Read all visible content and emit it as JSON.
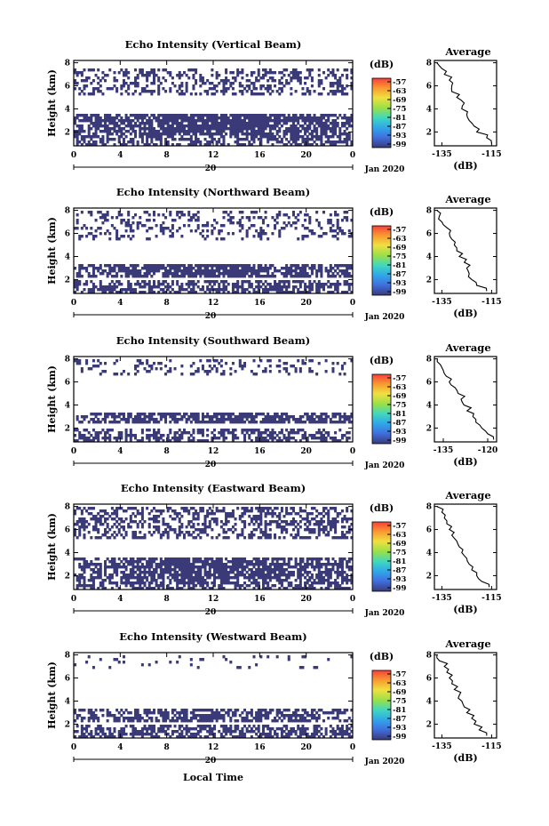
{
  "figure": {
    "xlabel": "Local Time",
    "colorbar_label": "(dB)",
    "colorbar_ticks": [
      "-57",
      "-63",
      "-69",
      "-75",
      "-81",
      "-87",
      "-93",
      "-99"
    ],
    "day_label": "20",
    "month_label": "Jan 2020",
    "avg_title": "Average",
    "avg_xlabel": "(dB)"
  },
  "chart_data": [
    {
      "type": "heatmap",
      "title": "Echo Intensity (Vertical Beam)",
      "ylabel": "Height (km)",
      "xlabel": "Local Time",
      "x_ticks": [
        "0",
        "4",
        "8",
        "12",
        "16",
        "20",
        "0"
      ],
      "y_ticks": [
        "2",
        "4",
        "6",
        "8"
      ],
      "xlim": [
        0,
        24
      ],
      "ylim": [
        0.8,
        8.2
      ],
      "colorbar": {
        "label": "(dB)",
        "range": [
          -99,
          -57
        ],
        "ticks": [
          -57,
          -63,
          -69,
          -75,
          -81,
          -87,
          -93,
          -99
        ]
      },
      "fill_color": "#3a3a78",
      "echo_layers": [
        {
          "label": "upper",
          "bottom_km": 5.2,
          "top_km": 7.5,
          "density": 0.35
        },
        {
          "label": "main",
          "bottom_km": 1.7,
          "top_km": 3.6,
          "density": 0.9
        },
        {
          "label": "lower",
          "bottom_km": 0.8,
          "top_km": 1.7,
          "density": 0.55
        }
      ],
      "average_profile": {
        "title": "Average",
        "xlabel": "(dB)",
        "x_ticks": [
          "-135",
          "-115"
        ],
        "xlim": [
          -138,
          -113
        ],
        "y_ticks": [
          "2",
          "4",
          "6",
          "8"
        ],
        "ylim": [
          0.8,
          8.2
        ],
        "height_km": [
          1.0,
          1.5,
          2.0,
          2.5,
          3.0,
          3.5,
          4.0,
          4.5,
          5.0,
          5.5,
          6.0,
          6.5,
          7.0,
          7.5,
          8.0
        ],
        "intensity_db": [
          -115,
          -117,
          -121,
          -122,
          -124,
          -125,
          -127,
          -126,
          -129,
          -131,
          -131,
          -132,
          -134,
          -135,
          -137
        ]
      }
    },
    {
      "type": "heatmap",
      "title": "Echo Intensity (Northward Beam)",
      "ylabel": "Height (km)",
      "xlabel": "Local Time",
      "x_ticks": [
        "0",
        "4",
        "8",
        "12",
        "16",
        "20",
        "0"
      ],
      "y_ticks": [
        "2",
        "4",
        "6",
        "8"
      ],
      "xlim": [
        0,
        24
      ],
      "ylim": [
        0.8,
        8.2
      ],
      "colorbar": {
        "label": "(dB)",
        "range": [
          -99,
          -57
        ],
        "ticks": [
          -57,
          -63,
          -69,
          -75,
          -81,
          -87,
          -93,
          -99
        ]
      },
      "fill_color": "#3a3a78",
      "echo_layers": [
        {
          "label": "upper",
          "bottom_km": 5.5,
          "top_km": 8.0,
          "density": 0.25
        },
        {
          "label": "main",
          "bottom_km": 2.2,
          "top_km": 3.3,
          "density": 0.85
        },
        {
          "label": "lower",
          "bottom_km": 0.8,
          "top_km": 2.0,
          "density": 0.6
        }
      ],
      "average_profile": {
        "title": "Average",
        "xlabel": "(dB)",
        "x_ticks": [
          "-135",
          "-115"
        ],
        "xlim": [
          -138,
          -113
        ],
        "y_ticks": [
          "2",
          "4",
          "6",
          "8"
        ],
        "ylim": [
          0.8,
          8.2
        ],
        "height_km": [
          1.0,
          1.5,
          2.0,
          2.5,
          3.0,
          3.5,
          4.0,
          4.5,
          5.0,
          5.5,
          6.0,
          6.5,
          7.0,
          7.5,
          8.0
        ],
        "intensity_db": [
          -117,
          -121,
          -123,
          -124,
          -125,
          -126,
          -128,
          -129,
          -130,
          -131,
          -132,
          -133,
          -135,
          -136,
          -137
        ]
      }
    },
    {
      "type": "heatmap",
      "title": "Echo Intensity (Southward Beam)",
      "ylabel": "Height (km)",
      "xlabel": "Local Time",
      "x_ticks": [
        "0",
        "4",
        "8",
        "12",
        "16",
        "20",
        "0"
      ],
      "y_ticks": [
        "2",
        "4",
        "6",
        "8"
      ],
      "xlim": [
        0,
        24
      ],
      "ylim": [
        0.8,
        8.2
      ],
      "colorbar": {
        "label": "(dB)",
        "range": [
          -99,
          -57
        ],
        "ticks": [
          -57,
          -63,
          -69,
          -75,
          -81,
          -87,
          -93,
          -99
        ]
      },
      "fill_color": "#3a3a78",
      "echo_layers": [
        {
          "label": "upper",
          "bottom_km": 6.5,
          "top_km": 8.0,
          "density": 0.2
        },
        {
          "label": "main",
          "bottom_km": 2.4,
          "top_km": 3.4,
          "density": 0.8
        },
        {
          "label": "lower",
          "bottom_km": 0.8,
          "top_km": 2.0,
          "density": 0.55
        }
      ],
      "average_profile": {
        "title": "Average",
        "xlabel": "(dB)",
        "x_ticks": [
          "-135",
          "-120"
        ],
        "xlim": [
          -138,
          -117
        ],
        "y_ticks": [
          "2",
          "4",
          "6",
          "8"
        ],
        "ylim": [
          0.8,
          8.2
        ],
        "height_km": [
          1.0,
          1.5,
          2.0,
          2.5,
          3.0,
          3.5,
          4.0,
          4.5,
          5.0,
          5.5,
          6.0,
          6.5,
          7.0,
          7.5,
          8.0
        ],
        "intensity_db": [
          -118,
          -120,
          -122,
          -124,
          -125,
          -127,
          -128,
          -129,
          -130,
          -131,
          -133,
          -134,
          -135,
          -136,
          -137
        ]
      }
    },
    {
      "type": "heatmap",
      "title": "Echo Intensity (Eastward Beam)",
      "ylabel": "Height (km)",
      "xlabel": "Local Time",
      "x_ticks": [
        "0",
        "4",
        "8",
        "12",
        "16",
        "20",
        "0"
      ],
      "y_ticks": [
        "2",
        "4",
        "6",
        "8"
      ],
      "xlim": [
        0,
        24
      ],
      "ylim": [
        0.8,
        8.2
      ],
      "colorbar": {
        "label": "(dB)",
        "range": [
          -99,
          -57
        ],
        "ticks": [
          -57,
          -63,
          -69,
          -75,
          -81,
          -87,
          -93,
          -99
        ]
      },
      "fill_color": "#3a3a78",
      "echo_layers": [
        {
          "label": "upper",
          "bottom_km": 5.2,
          "top_km": 8.0,
          "density": 0.45
        },
        {
          "label": "main",
          "bottom_km": 1.8,
          "top_km": 3.6,
          "density": 0.85
        },
        {
          "label": "lower",
          "bottom_km": 0.8,
          "top_km": 1.8,
          "density": 0.6
        }
      ],
      "average_profile": {
        "title": "Average",
        "xlabel": "(dB)",
        "x_ticks": [
          "-135",
          "-115"
        ],
        "xlim": [
          -138,
          -113
        ],
        "y_ticks": [
          "2",
          "4",
          "6",
          "8"
        ],
        "ylim": [
          0.8,
          8.2
        ],
        "height_km": [
          1.0,
          1.5,
          2.0,
          2.5,
          3.0,
          3.5,
          4.0,
          4.5,
          5.0,
          5.5,
          6.0,
          6.5,
          7.0,
          7.5,
          8.0
        ],
        "intensity_db": [
          -116,
          -119,
          -121,
          -123,
          -124,
          -125,
          -127,
          -128,
          -129,
          -131,
          -132,
          -133,
          -134,
          -135,
          -137
        ]
      }
    },
    {
      "type": "heatmap",
      "title": "Echo Intensity (Westward Beam)",
      "ylabel": "Height (km)",
      "xlabel": "Local Time",
      "x_ticks": [
        "0",
        "4",
        "8",
        "12",
        "16",
        "20",
        "0"
      ],
      "y_ticks": [
        "2",
        "4",
        "6",
        "8"
      ],
      "xlim": [
        0,
        24
      ],
      "ylim": [
        0.8,
        8.2
      ],
      "colorbar": {
        "label": "(dB)",
        "range": [
          -99,
          -57
        ],
        "ticks": [
          -57,
          -63,
          -69,
          -75,
          -81,
          -87,
          -93,
          -99
        ]
      },
      "fill_color": "#3a3a78",
      "echo_layers": [
        {
          "label": "upper",
          "bottom_km": 6.8,
          "top_km": 8.0,
          "density": 0.1
        },
        {
          "label": "main",
          "bottom_km": 2.2,
          "top_km": 3.3,
          "density": 0.7
        },
        {
          "label": "lower",
          "bottom_km": 0.8,
          "top_km": 2.0,
          "density": 0.6
        }
      ],
      "average_profile": {
        "title": "Average",
        "xlabel": "(dB)",
        "x_ticks": [
          "-135",
          "-115"
        ],
        "xlim": [
          -138,
          -113
        ],
        "y_ticks": [
          "2",
          "4",
          "6",
          "8"
        ],
        "ylim": [
          0.8,
          8.2
        ],
        "height_km": [
          1.0,
          1.5,
          2.0,
          2.5,
          3.0,
          3.5,
          4.0,
          4.5,
          5.0,
          5.5,
          6.0,
          6.5,
          7.0,
          7.5,
          8.0
        ],
        "intensity_db": [
          -117,
          -120,
          -122,
          -123,
          -125,
          -126,
          -127,
          -128,
          -130,
          -131,
          -132,
          -133,
          -134,
          -136,
          -137
        ]
      }
    }
  ],
  "colors": {
    "echo": "#3a3a78",
    "colorbar": [
      "#f8403a",
      "#f89a30",
      "#f0e040",
      "#98e048",
      "#40d8c0",
      "#30a8e8",
      "#4070e0",
      "#3a3a78"
    ]
  }
}
